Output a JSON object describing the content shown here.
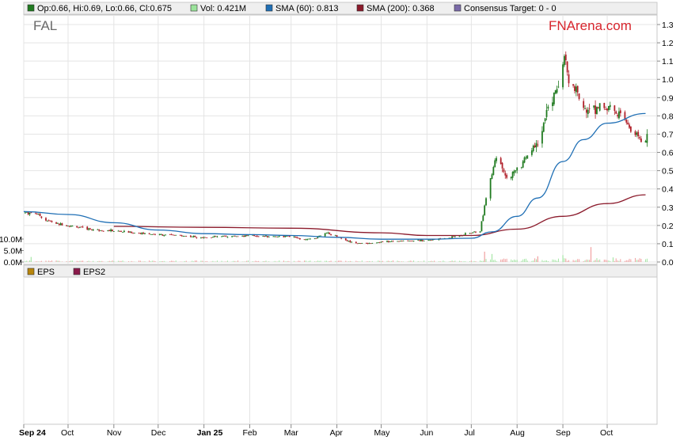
{
  "chart_data": {
    "type": "candlestick",
    "ticker": "FAL",
    "brand": "FNArena.com",
    "legend": [
      {
        "key": "ohlc",
        "label": "Op:0.66, Hi:0.69, Lo:0.66, Cl:0.675",
        "color": "#1f7a1f"
      },
      {
        "key": "vol",
        "label": "Vol: 0.421M",
        "color": "#9be39b"
      },
      {
        "key": "sma60",
        "label": "SMA (60): 0.813",
        "color": "#1f6fb5"
      },
      {
        "key": "sma200",
        "label": "SMA (200): 0.368",
        "color": "#8b1a2b"
      },
      {
        "key": "target",
        "label": "Consensus Target: 0 - 0",
        "color": "#7a6aa8"
      }
    ],
    "eps_legend": [
      {
        "label": "EPS",
        "color": "#b8860b"
      },
      {
        "label": "EPS2",
        "color": "#8b1a4b"
      }
    ],
    "price_axis": {
      "min": 0.0,
      "max": 1.3,
      "ticks": [
        "1.3",
        "1.2",
        "1.1",
        "1.0",
        "0.9",
        "0.8",
        "0.7",
        "0.6",
        "0.5",
        "0.4",
        "0.3",
        "0.2",
        "0.1",
        "0.0"
      ]
    },
    "volume_axis": {
      "ticks": [
        "10.0M",
        "5.0M",
        "0.0M"
      ]
    },
    "x_axis": {
      "labels": [
        "Sep 24",
        "Oct",
        "Nov",
        "Dec",
        "Jan 25",
        "Feb",
        "Mar",
        "Apr",
        "May",
        "Jun",
        "Jul",
        "Aug",
        "Sep",
        "Oct"
      ],
      "bold": [
        "Sep 24",
        "Jan 25"
      ]
    },
    "price_points": [
      [
        "2024-09-02",
        0.27
      ],
      [
        "2024-09-09",
        0.27
      ],
      [
        "2024-09-16",
        0.23
      ],
      [
        "2024-09-23",
        0.21
      ],
      [
        "2024-10-01",
        0.2
      ],
      [
        "2024-10-15",
        0.18
      ],
      [
        "2024-11-01",
        0.17
      ],
      [
        "2024-11-15",
        0.16
      ],
      [
        "2024-12-01",
        0.15
      ],
      [
        "2024-12-15",
        0.145
      ],
      [
        "2025-01-01",
        0.135
      ],
      [
        "2025-01-15",
        0.14
      ],
      [
        "2025-02-01",
        0.145
      ],
      [
        "2025-02-15",
        0.14
      ],
      [
        "2025-03-01",
        0.14
      ],
      [
        "2025-03-10",
        0.12
      ],
      [
        "2025-03-17",
        0.13
      ],
      [
        "2025-03-24",
        0.16
      ],
      [
        "2025-04-01",
        0.14
      ],
      [
        "2025-04-10",
        0.11
      ],
      [
        "2025-04-20",
        0.1
      ],
      [
        "2025-05-01",
        0.11
      ],
      [
        "2025-05-15",
        0.115
      ],
      [
        "2025-06-01",
        0.12
      ],
      [
        "2025-06-15",
        0.13
      ],
      [
        "2025-07-01",
        0.16
      ],
      [
        "2025-07-07",
        0.17
      ],
      [
        "2025-07-12",
        0.4
      ],
      [
        "2025-07-18",
        0.58
      ],
      [
        "2025-07-25",
        0.46
      ],
      [
        "2025-08-01",
        0.5
      ],
      [
        "2025-08-08",
        0.58
      ],
      [
        "2025-08-15",
        0.65
      ],
      [
        "2025-08-22",
        0.85
      ],
      [
        "2025-08-29",
        0.95
      ],
      [
        "2025-09-02",
        1.12
      ],
      [
        "2025-09-05",
        1.0
      ],
      [
        "2025-09-12",
        0.9
      ],
      [
        "2025-09-19",
        0.82
      ],
      [
        "2025-09-26",
        0.86
      ],
      [
        "2025-10-03",
        0.84
      ],
      [
        "2025-10-10",
        0.8
      ],
      [
        "2025-10-17",
        0.72
      ],
      [
        "2025-10-24",
        0.675
      ]
    ],
    "sma60": [
      [
        "2024-09-01",
        0.276
      ],
      [
        "2024-10-01",
        0.26
      ],
      [
        "2024-11-01",
        0.215
      ],
      [
        "2024-12-01",
        0.175
      ],
      [
        "2025-01-01",
        0.155
      ],
      [
        "2025-02-01",
        0.15
      ],
      [
        "2025-03-01",
        0.145
      ],
      [
        "2025-04-01",
        0.135
      ],
      [
        "2025-05-01",
        0.125
      ],
      [
        "2025-06-01",
        0.125
      ],
      [
        "2025-07-01",
        0.13
      ],
      [
        "2025-07-15",
        0.165
      ],
      [
        "2025-08-01",
        0.25
      ],
      [
        "2025-08-15",
        0.35
      ],
      [
        "2025-09-01",
        0.55
      ],
      [
        "2025-09-15",
        0.67
      ],
      [
        "2025-10-01",
        0.76
      ],
      [
        "2025-10-27",
        0.813
      ]
    ],
    "sma200": [
      [
        "2024-11-01",
        0.195
      ],
      [
        "2025-01-01",
        0.19
      ],
      [
        "2025-03-01",
        0.185
      ],
      [
        "2025-05-01",
        0.16
      ],
      [
        "2025-06-01",
        0.145
      ],
      [
        "2025-07-01",
        0.145
      ],
      [
        "2025-08-01",
        0.18
      ],
      [
        "2025-09-01",
        0.25
      ],
      [
        "2025-10-01",
        0.32
      ],
      [
        "2025-10-27",
        0.368
      ]
    ],
    "volume_spikes_millions": [
      [
        "2024-09-06",
        2.2
      ],
      [
        "2025-07-10",
        4.5
      ],
      [
        "2025-07-15",
        3.5
      ],
      [
        "2025-08-15",
        2.5
      ],
      [
        "2025-09-01",
        3.0
      ],
      [
        "2025-09-20",
        6.5
      ],
      [
        "2025-10-05",
        2.0
      ]
    ],
    "grid": true,
    "legend_position": "top"
  }
}
